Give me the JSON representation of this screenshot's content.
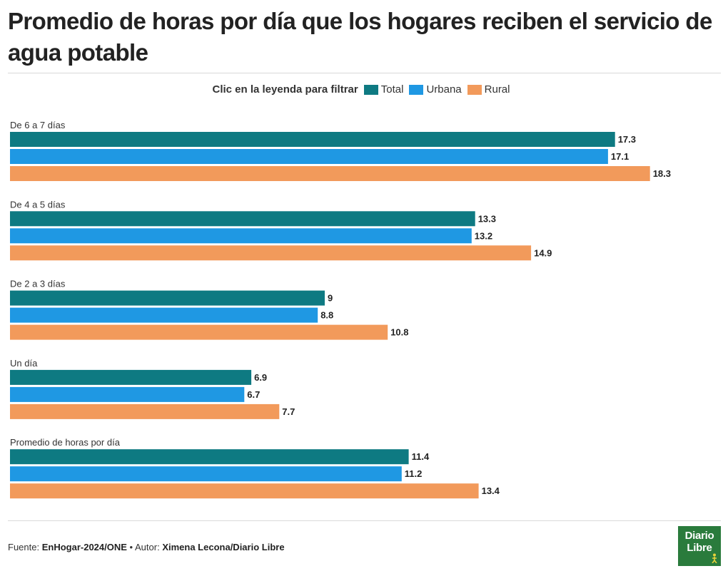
{
  "title": "Promedio de horas por día que los hogares reciben el servicio de agua potable",
  "legend": {
    "title": "Clic en la leyenda para filtrar",
    "items": [
      {
        "label": "Total",
        "color": "#0e7a82"
      },
      {
        "label": "Urbana",
        "color": "#1f98e3"
      },
      {
        "label": "Rural",
        "color": "#f29a5b"
      }
    ]
  },
  "chart_data": {
    "type": "bar",
    "orientation": "horizontal",
    "title": "Promedio de horas por día que los hogares reciben el servicio de agua potable",
    "categories": [
      "De 6 a 7 días",
      "De 4 a 5 días",
      "De 2 a 3 días",
      "Un día",
      "Promedio de horas por día"
    ],
    "series": [
      {
        "name": "Total",
        "color": "#0e7a82",
        "values": [
          17.3,
          13.3,
          9,
          6.9,
          11.4
        ]
      },
      {
        "name": "Urbana",
        "color": "#1f98e3",
        "values": [
          17.1,
          13.2,
          8.8,
          6.7,
          11.2
        ]
      },
      {
        "name": "Rural",
        "color": "#f29a5b",
        "values": [
          18.3,
          14.9,
          10.8,
          7.7,
          13.4
        ]
      }
    ],
    "xlim": [
      0,
      19
    ],
    "xlabel": "",
    "ylabel": "",
    "grid": false,
    "legend_position": "top-center"
  },
  "footer": {
    "source_label": "Fuente:",
    "source": "EnHogar-2024/ONE",
    "separator": "•",
    "author_label": "Autor:",
    "author": "Ximena Lecona/Diario Libre"
  },
  "logo": {
    "line1": "Diario",
    "line2": "Libre"
  }
}
